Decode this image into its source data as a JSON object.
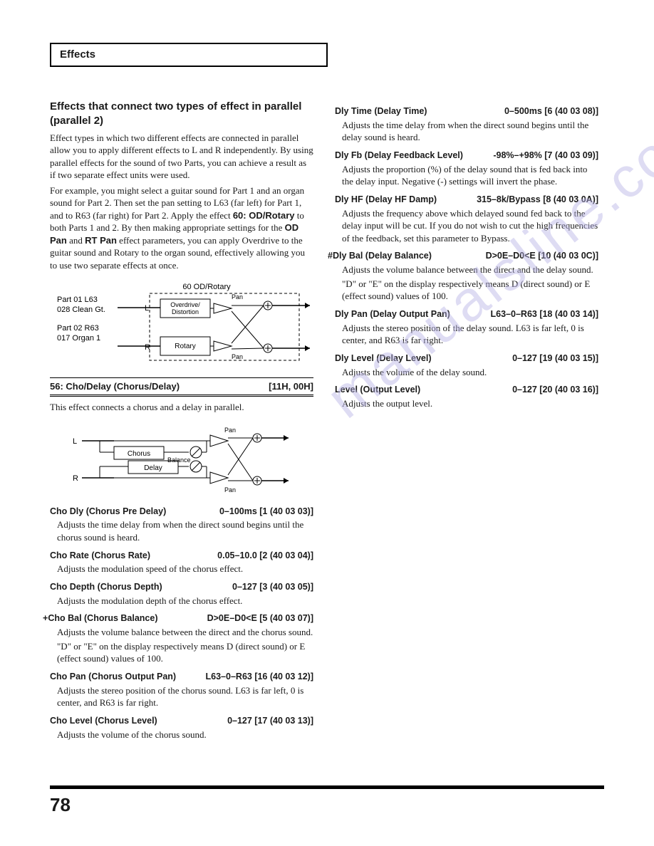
{
  "header": {
    "title": "Effects"
  },
  "left": {
    "sectionTitle": "Effects that connect two types of effect in parallel (parallel 2)",
    "para1": "Effect types in which two different effects are connected in parallel allow you to apply different effects to L and R independently. By using parallel effects for the sound of two Parts, you can achieve a result as if two separate effect units were used.",
    "para2a": "For example, you might select a guitar sound for Part 1 and an organ sound for Part 2. Then set the pan setting to L63 (far left) for Part 1, and to R63 (far right) for Part 2. Apply the effect ",
    "para2bold1": "60: OD/Rotary",
    "para2b": " to both Parts 1 and 2. By then making appropriate settings for the ",
    "para2bold2": "OD Pan",
    "para2c": " and ",
    "para2bold3": "RT Pan",
    "para2d": " effect parameters, you can apply Overdrive to the guitar sound and Rotary to the organ sound, effectively allowing you to use two separate effects at once.",
    "diagram1": {
      "title": "60 OD/Rotary",
      "part1a": "Part 01  L63",
      "part1b": "028 Clean Gt.",
      "part2a": "Part 02  R63",
      "part2b": "017 Organ 1",
      "box1": "Overdrive/\nDistortion",
      "box2": "Rotary",
      "pan": "Pan",
      "l": "L",
      "r": "R"
    },
    "divider": {
      "left": "56: Cho/Delay (Chorus/Delay)",
      "right": "[11H, 00H]"
    },
    "afterDivider": "This effect connects a chorus and a delay in parallel.",
    "diagram2": {
      "chorus": "Chorus",
      "delay": "Delay",
      "balance": "Balance",
      "pan": "Pan",
      "l": "L",
      "r": "R"
    },
    "params": [
      {
        "name": "Cho Dly (Chorus Pre Delay)",
        "val": "0–100ms [1 (40 03 03)]",
        "desc": "Adjusts the time delay from when the direct sound begins until the chorus sound is heard."
      },
      {
        "name": "Cho Rate (Chorus Rate)",
        "val": "0.05–10.0 [2 (40 03 04)]",
        "desc": "Adjusts the modulation speed of the chorus effect."
      },
      {
        "name": "Cho Depth (Chorus Depth)",
        "val": "0–127 [3 (40 03 05)]",
        "desc": "Adjusts the modulation depth of the chorus effect."
      },
      {
        "prefix": "+",
        "name": "Cho Bal (Chorus Balance)",
        "val": "D>0E–D0<E [5 (40 03 07)]",
        "desc": "Adjusts the volume balance between the direct and the chorus sound.",
        "desc2": "\"D\" or \"E\" on the display respectively means D (direct sound) or E (effect sound) values of 100."
      },
      {
        "name": "Cho Pan (Chorus Output Pan)",
        "val": "L63–0–R63 [16 (40 03 12)]",
        "desc": "Adjusts the stereo position of the chorus sound. L63 is far left, 0 is center, and R63 is far right."
      },
      {
        "name": "Cho Level (Chorus Level)",
        "val": "0–127 [17 (40 03 13)]",
        "desc": "Adjusts the volume of the chorus sound."
      }
    ]
  },
  "right": {
    "params": [
      {
        "name": "Dly Time (Delay Time)",
        "val": "0–500ms [6 (40 03 08)]",
        "desc": "Adjusts the time delay from when the direct sound begins until the delay sound is heard."
      },
      {
        "name": "Dly Fb (Delay Feedback Level)",
        "val": "-98%–+98% [7 (40 03 09)]",
        "desc": "Adjusts the proportion (%) of the delay sound that is fed back into the delay input. Negative (-) settings will invert the phase."
      },
      {
        "name": "Dly HF (Delay HF Damp)",
        "val": "315–8k/Bypass [8 (40 03 0A)]",
        "desc": "Adjusts the frequency above which delayed sound fed back to the delay input will be cut. If you do not wish to cut the high frequencies of the feedback, set this parameter to Bypass."
      },
      {
        "prefix": "#",
        "name": "Dly Bal (Delay Balance)",
        "val": "D>0E–D0<E [10 (40 03 0C)]",
        "desc": "Adjusts the volume balance between the direct and the delay sound.",
        "desc2": "\"D\" or \"E\" on the display respectively means D (direct sound) or E (effect sound) values of 100."
      },
      {
        "name": "Dly Pan (Delay Output Pan)",
        "val": "L63–0–R63 [18 (40 03 14)]",
        "desc": "Adjusts the stereo position of the delay sound. L63 is far left, 0 is center, and R63 is far right."
      },
      {
        "name": "Dly Level (Delay Level)",
        "val": "0–127 [19 (40 03 15)]",
        "desc": "Adjusts the volume of the delay sound."
      },
      {
        "name": "Level (Output Level)",
        "val": "0–127 [20 (40 03 16)]",
        "desc": "Adjusts the output level."
      }
    ]
  },
  "watermark": "manualsline.com",
  "pageNumber": "78"
}
